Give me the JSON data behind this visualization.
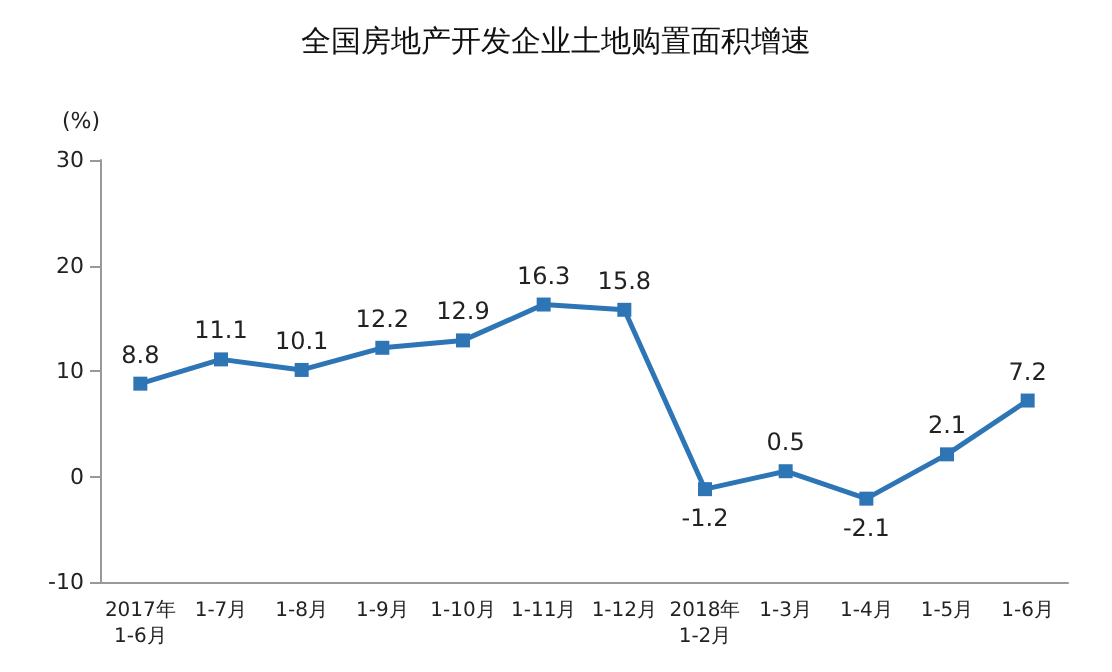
{
  "chart_data": {
    "type": "line",
    "title": "全国房地产开发企业土地购置面积增速",
    "ylabel": "(%)",
    "categories": [
      "2017年\n1-6月",
      "1-7月",
      "1-8月",
      "1-9月",
      "1-10月",
      "1-11月",
      "1-12月",
      "2018年\n1-2月",
      "1-3月",
      "1-4月",
      "1-5月",
      "1-6月"
    ],
    "series": [
      {
        "color": "#2e75b6",
        "values": [
          8.8,
          11.1,
          10.1,
          12.2,
          12.9,
          16.3,
          15.8,
          -1.2,
          0.5,
          -2.1,
          2.1,
          7.2
        ]
      }
    ],
    "ylim": [
      -10,
      30
    ],
    "yticks": [
      -10,
      0,
      10,
      20,
      30
    ],
    "grid": false,
    "marker": "square",
    "line_style": "solid",
    "data_labels": true
  }
}
